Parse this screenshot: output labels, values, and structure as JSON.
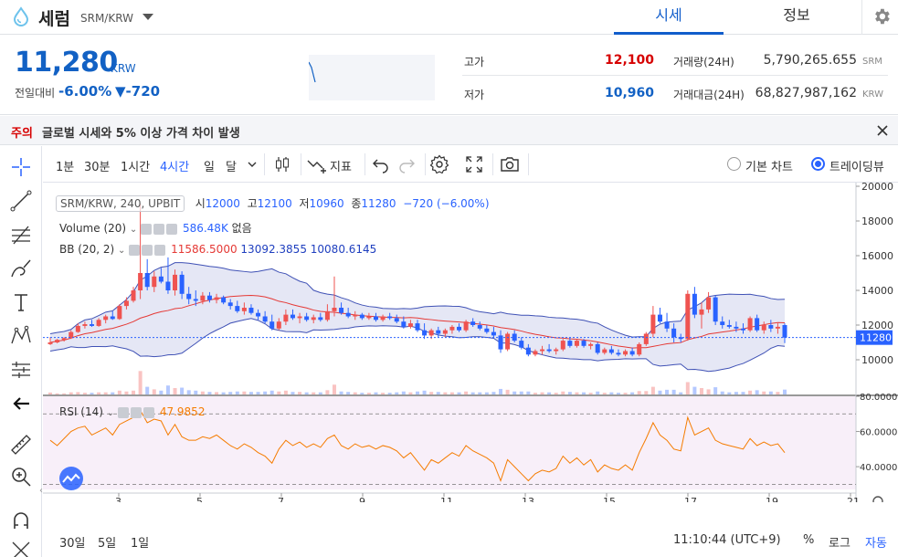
{
  "header": {
    "coin_name": "세럼",
    "pair": "SRM/KRW",
    "tabs": [
      {
        "label": "시세",
        "active": true
      },
      {
        "label": "정보",
        "active": false
      }
    ]
  },
  "price_panel": {
    "price": "11,280",
    "unit": "KRW",
    "change_label": "전일대비",
    "change_pct": "-6.00%",
    "change_abs": "▼-720",
    "high_label": "고가",
    "high": "12,100",
    "low_label": "저가",
    "low": "10,960",
    "volume_label": "거래량(24H)",
    "volume": "5,790,265.655",
    "volume_unit": "SRM",
    "amount_label": "거래대금(24H)",
    "amount": "68,827,987,162",
    "amount_unit": "KRW"
  },
  "warning": {
    "tag": "주의",
    "text": "글로벌 시세와 5% 이상 가격 차이 발생"
  },
  "toolbar": {
    "timeframes": [
      {
        "label": "1분",
        "active": false
      },
      {
        "label": "30분",
        "active": false
      },
      {
        "label": "1시간",
        "active": false
      },
      {
        "label": "4시간",
        "active": true
      },
      {
        "label": "일",
        "active": false
      },
      {
        "label": "달",
        "active": false
      }
    ],
    "indicators_label": "지표",
    "basic_chart_label": "기본 차트",
    "tradingview_label": "트레이딩뷰"
  },
  "legend": {
    "symbol": "SRM/KRW, 240, UPBIT",
    "o_label": "시",
    "o": "12000",
    "h_label": "고",
    "h": "12100",
    "l_label": "저",
    "l": "10960",
    "c_label": "종",
    "c": "11280",
    "chg": "−720 (−6.00%)",
    "volume_title": "Volume (20)",
    "volume_val": "586.48K",
    "volume_extra": "없음",
    "bb_title": "BB (20, 2)",
    "bb_basis": "11586.5000",
    "bb_upper": "13092.3855",
    "bb_lower": "10080.6145",
    "rsi_title": "RSI (14)",
    "rsi_val": "47.9852"
  },
  "colors": {
    "up": "#ef5350",
    "down": "#2962ff",
    "accent": "#115dcb",
    "bb_basis": "#e53935",
    "bb_band": "#3f51b5",
    "rsi": "#f57c00"
  },
  "price_axis": {
    "ticks": [
      "20000",
      "18000",
      "16000",
      "14000",
      "12000",
      "10000"
    ],
    "last": "11280"
  },
  "rsi_axis": {
    "ticks": [
      "80.0000",
      "60.0000",
      "40.0000"
    ]
  },
  "time_axis": {
    "ticks": [
      "3",
      "5",
      "7",
      "9",
      "11",
      "13",
      "15",
      "17",
      "19",
      "21"
    ]
  },
  "bottom": {
    "ranges": [
      "30일",
      "5일",
      "1일"
    ],
    "clock": "11:10:44 (UTC+9)",
    "pct": "%",
    "log": "로그",
    "auto": "자동"
  },
  "chart_data": {
    "type": "candlestick",
    "y_range": [
      8000,
      20000
    ],
    "rsi_range": [
      25,
      80
    ],
    "candles": [
      [
        10900,
        11300,
        10850,
        11000
      ],
      [
        11000,
        11200,
        10950,
        11150
      ],
      [
        11150,
        11300,
        11050,
        11250
      ],
      [
        11250,
        11700,
        11200,
        11600
      ],
      [
        11600,
        12100,
        11550,
        11950
      ],
      [
        11950,
        12200,
        11800,
        12050
      ],
      [
        12050,
        12300,
        11900,
        11950
      ],
      [
        11950,
        12400,
        11900,
        12300
      ],
      [
        12300,
        12600,
        12100,
        12500
      ],
      [
        12500,
        12800,
        12300,
        12350
      ],
      [
        12350,
        13200,
        12300,
        13100
      ],
      [
        13100,
        13600,
        12900,
        13400
      ],
      [
        13400,
        14200,
        13300,
        14000
      ],
      [
        14000,
        19000,
        13500,
        15000
      ],
      [
        15000,
        15800,
        14000,
        14200
      ],
      [
        14200,
        15100,
        13900,
        14800
      ],
      [
        14800,
        15300,
        14400,
        14500
      ],
      [
        14500,
        15900,
        13800,
        14000
      ],
      [
        14000,
        15200,
        13700,
        14900
      ],
      [
        14900,
        15100,
        13500,
        13800
      ],
      [
        13800,
        14200,
        13200,
        13500
      ],
      [
        13500,
        14000,
        13100,
        13400
      ],
      [
        13400,
        13900,
        13200,
        13700
      ],
      [
        13700,
        13900,
        13300,
        13450
      ],
      [
        13450,
        13800,
        13250,
        13600
      ],
      [
        13600,
        13700,
        13200,
        13300
      ],
      [
        13300,
        13500,
        12900,
        13100
      ],
      [
        13100,
        13400,
        12700,
        12800
      ],
      [
        12800,
        13300,
        12600,
        13000
      ],
      [
        13000,
        13200,
        12600,
        12700
      ],
      [
        12700,
        12900,
        12300,
        12500
      ],
      [
        12500,
        12800,
        12100,
        12200
      ],
      [
        12200,
        12600,
        11700,
        11800
      ],
      [
        11800,
        12400,
        11700,
        12200
      ],
      [
        12200,
        12900,
        12000,
        12600
      ],
      [
        12600,
        12900,
        12300,
        12400
      ],
      [
        12400,
        12700,
        12100,
        12500
      ],
      [
        12500,
        12700,
        12200,
        12300
      ],
      [
        12300,
        12600,
        12100,
        12450
      ],
      [
        12450,
        12700,
        12200,
        12300
      ],
      [
        12300,
        13200,
        12200,
        12800
      ],
      [
        12800,
        14800,
        12500,
        13000
      ],
      [
        13000,
        13300,
        12600,
        12700
      ],
      [
        12700,
        13000,
        12400,
        12500
      ],
      [
        12500,
        12800,
        12300,
        12600
      ],
      [
        12600,
        12700,
        12300,
        12400
      ],
      [
        12400,
        12700,
        12300,
        12500
      ],
      [
        12500,
        12700,
        12200,
        12300
      ],
      [
        12300,
        12600,
        12200,
        12500
      ],
      [
        12500,
        12700,
        12300,
        12400
      ],
      [
        12400,
        12600,
        12100,
        12200
      ],
      [
        12200,
        12500,
        11800,
        11900
      ],
      [
        11900,
        12300,
        11800,
        12100
      ],
      [
        12100,
        12300,
        11600,
        11700
      ],
      [
        11700,
        12100,
        11200,
        11400
      ],
      [
        11400,
        11800,
        11200,
        11700
      ],
      [
        11700,
        11900,
        11300,
        11500
      ],
      [
        11500,
        11800,
        11300,
        11700
      ],
      [
        11700,
        12000,
        11500,
        11900
      ],
      [
        11900,
        12100,
        11600,
        11700
      ],
      [
        11700,
        12300,
        11600,
        12200
      ],
      [
        12200,
        12400,
        11900,
        12000
      ],
      [
        12000,
        12200,
        11700,
        11800
      ],
      [
        11800,
        12000,
        11500,
        11600
      ],
      [
        11600,
        11900,
        11300,
        11400
      ],
      [
        11400,
        11700,
        10400,
        10600
      ],
      [
        10600,
        11600,
        10500,
        11500
      ],
      [
        11500,
        11700,
        11000,
        11100
      ],
      [
        11100,
        11300,
        10600,
        10700
      ],
      [
        10700,
        10900,
        10200,
        10300
      ],
      [
        10300,
        10600,
        10200,
        10500
      ],
      [
        10500,
        10800,
        10300,
        10600
      ],
      [
        10600,
        10900,
        10400,
        10500
      ],
      [
        10500,
        10700,
        10300,
        10600
      ],
      [
        10600,
        11200,
        10500,
        11100
      ],
      [
        11100,
        11300,
        10700,
        10800
      ],
      [
        10800,
        11200,
        10700,
        11100
      ],
      [
        11100,
        11200,
        10700,
        10800
      ],
      [
        10800,
        11000,
        10600,
        10900
      ],
      [
        10900,
        11000,
        10300,
        10400
      ],
      [
        10400,
        10700,
        10300,
        10600
      ],
      [
        10600,
        10800,
        10300,
        10400
      ],
      [
        10400,
        10600,
        10200,
        10300
      ],
      [
        10300,
        10600,
        10200,
        10500
      ],
      [
        10500,
        10700,
        10200,
        10300
      ],
      [
        10300,
        11000,
        10200,
        10900
      ],
      [
        10900,
        11600,
        10800,
        11500
      ],
      [
        11500,
        13100,
        11300,
        12600
      ],
      [
        12600,
        13000,
        12100,
        12200
      ],
      [
        12200,
        12700,
        11600,
        11800
      ],
      [
        11800,
        12100,
        11000,
        11300
      ],
      [
        11300,
        11500,
        11000,
        11200
      ],
      [
        11200,
        14000,
        11100,
        13800
      ],
      [
        13800,
        14200,
        12400,
        12600
      ],
      [
        12600,
        13300,
        11800,
        12900
      ],
      [
        12900,
        13900,
        12700,
        13600
      ],
      [
        13600,
        13700,
        12000,
        12200
      ],
      [
        12200,
        12500,
        11800,
        12000
      ],
      [
        12000,
        12300,
        11800,
        11900
      ],
      [
        11900,
        12200,
        11600,
        11800
      ],
      [
        11800,
        12100,
        11500,
        11700
      ],
      [
        11700,
        12500,
        11600,
        12400
      ],
      [
        12400,
        12600,
        11600,
        11700
      ],
      [
        11700,
        12200,
        11500,
        12000
      ],
      [
        12000,
        12300,
        11600,
        11800
      ],
      [
        11800,
        12100,
        11500,
        11900
      ],
      [
        12000,
        12100,
        10960,
        11280
      ]
    ],
    "rsi": [
      55,
      52,
      56,
      60,
      62,
      63,
      58,
      60,
      62,
      58,
      64,
      66,
      68,
      72,
      65,
      67,
      66,
      58,
      64,
      57,
      55,
      55,
      57,
      56,
      58,
      55,
      52,
      50,
      53,
      51,
      48,
      46,
      42,
      50,
      55,
      52,
      54,
      51,
      53,
      51,
      56,
      58,
      52,
      50,
      53,
      51,
      52,
      50,
      52,
      51,
      49,
      45,
      48,
      43,
      38,
      44,
      42,
      45,
      48,
      46,
      52,
      49,
      47,
      45,
      42,
      32,
      44,
      40,
      36,
      32,
      36,
      38,
      37,
      39,
      46,
      42,
      45,
      41,
      44,
      37,
      41,
      39,
      38,
      41,
      38,
      48,
      56,
      65,
      58,
      55,
      50,
      49,
      68,
      58,
      60,
      62,
      55,
      53,
      52,
      51,
      50,
      56,
      52,
      54,
      52,
      53,
      48
    ]
  }
}
